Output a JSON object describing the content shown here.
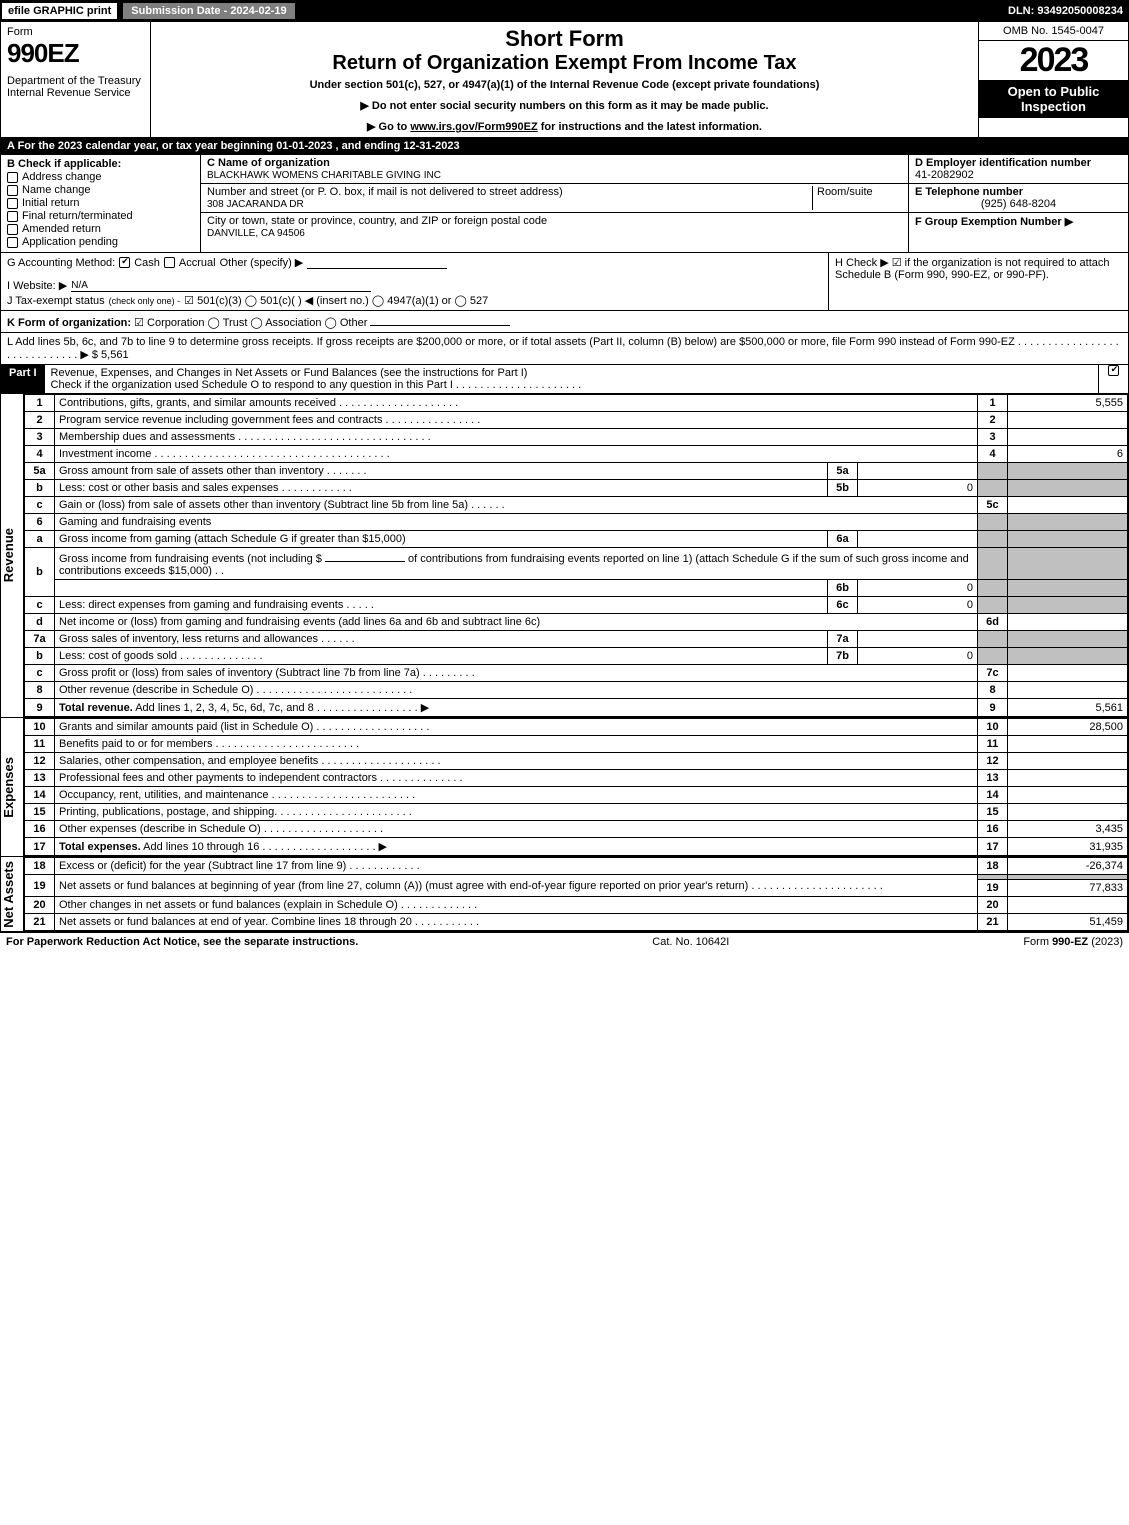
{
  "topbar": {
    "efile": "efile GRAPHIC print",
    "subdate": "Submission Date - 2024-02-19",
    "dln": "DLN: 93492050008234"
  },
  "header": {
    "formword": "Form",
    "form": "990EZ",
    "dept": "Department of the Treasury",
    "irs": "Internal Revenue Service",
    "short": "Short Form",
    "return": "Return of Organization Exempt From Income Tax",
    "under": "Under section 501(c), 527, or 4947(a)(1) of the Internal Revenue Code (except private foundations)",
    "donot": "▶ Do not enter social security numbers on this form as it may be made public.",
    "goto_pre": "▶ Go to ",
    "goto_link": "www.irs.gov/Form990EZ",
    "goto_post": " for instructions and the latest information.",
    "omb": "OMB No. 1545-0047",
    "year": "2023",
    "open": "Open to Public Inspection"
  },
  "A": "A  For the 2023 calendar year, or tax year beginning 01-01-2023 , and ending 12-31-2023",
  "B": {
    "label": "B  Check if applicable:",
    "items": [
      {
        "label": "Address change",
        "checked": false
      },
      {
        "label": "Name change",
        "checked": false
      },
      {
        "label": "Initial return",
        "checked": false
      },
      {
        "label": "Final return/terminated",
        "checked": false
      },
      {
        "label": "Amended return",
        "checked": false
      },
      {
        "label": "Application pending",
        "checked": false
      }
    ]
  },
  "C": {
    "name_label": "C Name of organization",
    "name": "BLACKHAWK WOMENS CHARITABLE GIVING INC",
    "street_label": "Number and street (or P. O. box, if mail is not delivered to street address)",
    "room_label": "Room/suite",
    "street": "308 JACARANDA DR",
    "city_label": "City or town, state or province, country, and ZIP or foreign postal code",
    "city": "DANVILLE, CA  94506"
  },
  "D": {
    "label": "D Employer identification number",
    "value": "41-2082902"
  },
  "E": {
    "label": "E Telephone number",
    "value": "(925) 648-8204"
  },
  "F": {
    "label": "F Group Exemption Number  ▶",
    "value": ""
  },
  "G": {
    "label": "G Accounting Method:",
    "cash": "Cash",
    "accrual": "Accrual",
    "other": "Other (specify) ▶"
  },
  "H": {
    "text": "H   Check ▶  ☑  if the organization is not required to attach Schedule B (Form 990, 990-EZ, or 990-PF)."
  },
  "I": {
    "label": "I Website: ▶",
    "value": "N/A"
  },
  "J": {
    "label": "J Tax-exempt status",
    "small": "(check only one) ‐",
    "opts": "☑ 501(c)(3)  ◯ 501(c)(  ) ◀ (insert no.)  ◯ 4947(a)(1) or  ◯ 527"
  },
  "K": {
    "label": "K Form of organization:",
    "opts": "☑ Corporation   ◯ Trust   ◯ Association   ◯ Other"
  },
  "L": {
    "text": "L Add lines 5b, 6c, and 7b to line 9 to determine gross receipts. If gross receipts are $200,000 or more, or if total assets (Part II, column (B) below) are $500,000 or more, file Form 990 instead of Form 990-EZ .  .  .  .  .  .  .  .  .  .  .  .  .  .  .  .  .  .  .  .  .  .  .  .  .  .  .  .  .  ▶ $ 5,561"
  },
  "partI": {
    "bar": "Part I",
    "title": "Revenue, Expenses, and Changes in Net Assets or Fund Balances (see the instructions for Part I)",
    "checkline": "Check if the organization used Schedule O to respond to any question in this Part I .  .  .  .  .  .  .  .  .  .  .  .  .  .  .  .  .  .  .  .  ."
  },
  "revenue_label": "Revenue",
  "expenses_label": "Expenses",
  "netassets_label": "Net Assets",
  "lines": {
    "1": {
      "ln": "1",
      "desc": "Contributions, gifts, grants, and similar amounts received .  .  .  .  .  .  .  .  .  .  .  .  .  .  .  .  .  .  .  .",
      "num": "1",
      "val": "5,555"
    },
    "2": {
      "ln": "2",
      "desc": "Program service revenue including government fees and contracts .  .  .  .  .  .  .  .  .  .  .  .  .  .  .  .",
      "num": "2",
      "val": ""
    },
    "3": {
      "ln": "3",
      "desc": "Membership dues and assessments .  .  .  .  .  .  .  .  .  .  .  .  .  .  .  .  .  .  .  .  .  .  .  .  .  .  .  .  .  .  .  .",
      "num": "3",
      "val": ""
    },
    "4": {
      "ln": "4",
      "desc": "Investment income .  .  .  .  .  .  .  .  .  .  .  .  .  .  .  .  .  .  .  .  .  .  .  .  .  .  .  .  .  .  .  .  .  .  .  .  .  .  .",
      "num": "4",
      "val": "6"
    },
    "5a": {
      "ln": "5a",
      "desc": "Gross amount from sale of assets other than inventory .  .  .  .  .  .  .",
      "sub": "5a",
      "subval": ""
    },
    "5b": {
      "ln": "b",
      "desc": "Less: cost or other basis and sales expenses .  .  .  .  .  .  .  .  .  .  .  .",
      "sub": "5b",
      "subval": "0"
    },
    "5c": {
      "ln": "c",
      "desc": "Gain or (loss) from sale of assets other than inventory (Subtract line 5b from line 5a) .  .  .  .  .  .",
      "num": "5c",
      "val": ""
    },
    "6": {
      "ln": "6",
      "desc": "Gaming and fundraising events"
    },
    "6a": {
      "ln": "a",
      "desc": "Gross income from gaming (attach Schedule G if greater than $15,000)",
      "sub": "6a",
      "subval": ""
    },
    "6b": {
      "ln": "b",
      "desc1": "Gross income from fundraising events (not including $",
      "desc2": "of contributions from fundraising events reported on line 1) (attach Schedule G if the sum of such gross income and contributions exceeds $15,000)   .   .",
      "sub": "6b",
      "subval": "0"
    },
    "6c": {
      "ln": "c",
      "desc": "Less: direct expenses from gaming and fundraising events .  .  .  .  .",
      "sub": "6c",
      "subval": "0"
    },
    "6d": {
      "ln": "d",
      "desc": "Net income or (loss) from gaming and fundraising events (add lines 6a and 6b and subtract line 6c)",
      "num": "6d",
      "val": ""
    },
    "7a": {
      "ln": "7a",
      "desc": "Gross sales of inventory, less returns and allowances .  .  .  .  .  .",
      "sub": "7a",
      "subval": ""
    },
    "7b": {
      "ln": "b",
      "desc": "Less: cost of goods sold           .   .   .   .   .   .   .   .   .   .   .   .   .   .",
      "sub": "7b",
      "subval": "0"
    },
    "7c": {
      "ln": "c",
      "desc": "Gross profit or (loss) from sales of inventory (Subtract line 7b from line 7a) .  .  .  .  .  .  .  .  .",
      "num": "7c",
      "val": ""
    },
    "8": {
      "ln": "8",
      "desc": "Other revenue (describe in Schedule O) .  .  .  .  .  .  .  .  .  .  .  .  .  .  .  .  .  .  .  .  .  .  .  .  .  .",
      "num": "8",
      "val": ""
    },
    "9": {
      "ln": "9",
      "desc": "Total revenue. Add lines 1, 2, 3, 4, 5c, 6d, 7c, and 8  .   .   .   .   .   .   .   .   .   .   .   .   .   .   .   .   .   ▶",
      "num": "9",
      "val": "5,561",
      "bold": true
    },
    "10": {
      "ln": "10",
      "desc": "Grants and similar amounts paid (list in Schedule O) .  .  .  .  .  .  .  .  .  .  .  .  .  .  .  .  .  .  .",
      "num": "10",
      "val": "28,500"
    },
    "11": {
      "ln": "11",
      "desc": "Benefits paid to or for members      .   .   .   .   .   .   .   .   .   .   .   .   .   .   .   .   .   .   .   .   .   .   .   .",
      "num": "11",
      "val": ""
    },
    "12": {
      "ln": "12",
      "desc": "Salaries, other compensation, and employee benefits .  .  .  .  .  .  .  .  .  .  .  .  .  .  .  .  .  .  .  .",
      "num": "12",
      "val": ""
    },
    "13": {
      "ln": "13",
      "desc": "Professional fees and other payments to independent contractors .  .  .  .  .  .  .  .  .  .  .  .  .  .",
      "num": "13",
      "val": ""
    },
    "14": {
      "ln": "14",
      "desc": "Occupancy, rent, utilities, and maintenance .  .  .  .  .  .  .  .  .  .  .  .  .  .  .  .  .  .  .  .  .  .  .  .",
      "num": "14",
      "val": ""
    },
    "15": {
      "ln": "15",
      "desc": "Printing, publications, postage, and shipping.  .  .  .  .  .  .  .  .  .  .  .  .  .  .  .  .  .  .  .  .  .  .",
      "num": "15",
      "val": ""
    },
    "16": {
      "ln": "16",
      "desc": "Other expenses (describe in Schedule O)     .   .   .   .   .   .   .   .   .   .   .   .   .   .   .   .   .   .   .   .",
      "num": "16",
      "val": "3,435"
    },
    "17": {
      "ln": "17",
      "desc": "Total expenses. Add lines 10 through 16      .   .   .   .   .   .   .   .   .   .   .   .   .   .   .   .   .   .   .  ▶",
      "num": "17",
      "val": "31,935",
      "bold": true
    },
    "18": {
      "ln": "18",
      "desc": "Excess or (deficit) for the year (Subtract line 17 from line 9)         .   .   .   .   .   .   .   .   .   .   .   .",
      "num": "18",
      "val": "-26,374"
    },
    "19": {
      "ln": "19",
      "desc": "Net assets or fund balances at beginning of year (from line 27, column (A)) (must agree with end-of-year figure reported on prior year's return) .  .  .  .  .  .  .  .  .  .  .  .  .  .  .  .  .  .  .  .  .  .",
      "num": "19",
      "val": "77,833"
    },
    "20": {
      "ln": "20",
      "desc": "Other changes in net assets or fund balances (explain in Schedule O) .  .  .  .  .  .  .  .  .  .  .  .  .",
      "num": "20",
      "val": ""
    },
    "21": {
      "ln": "21",
      "desc": "Net assets or fund balances at end of year. Combine lines 18 through 20 .  .  .  .  .  .  .  .  .  .  .",
      "num": "21",
      "val": "51,459"
    }
  },
  "footer": {
    "left": "For Paperwork Reduction Act Notice, see the separate instructions.",
    "center": "Cat. No. 10642I",
    "right_pre": "Form ",
    "right_form": "990-EZ",
    "right_post": " (2023)"
  },
  "colors": {
    "black": "#000000",
    "white": "#ffffff",
    "gray": "#7f7f7f",
    "shade": "#c0c0c0"
  }
}
